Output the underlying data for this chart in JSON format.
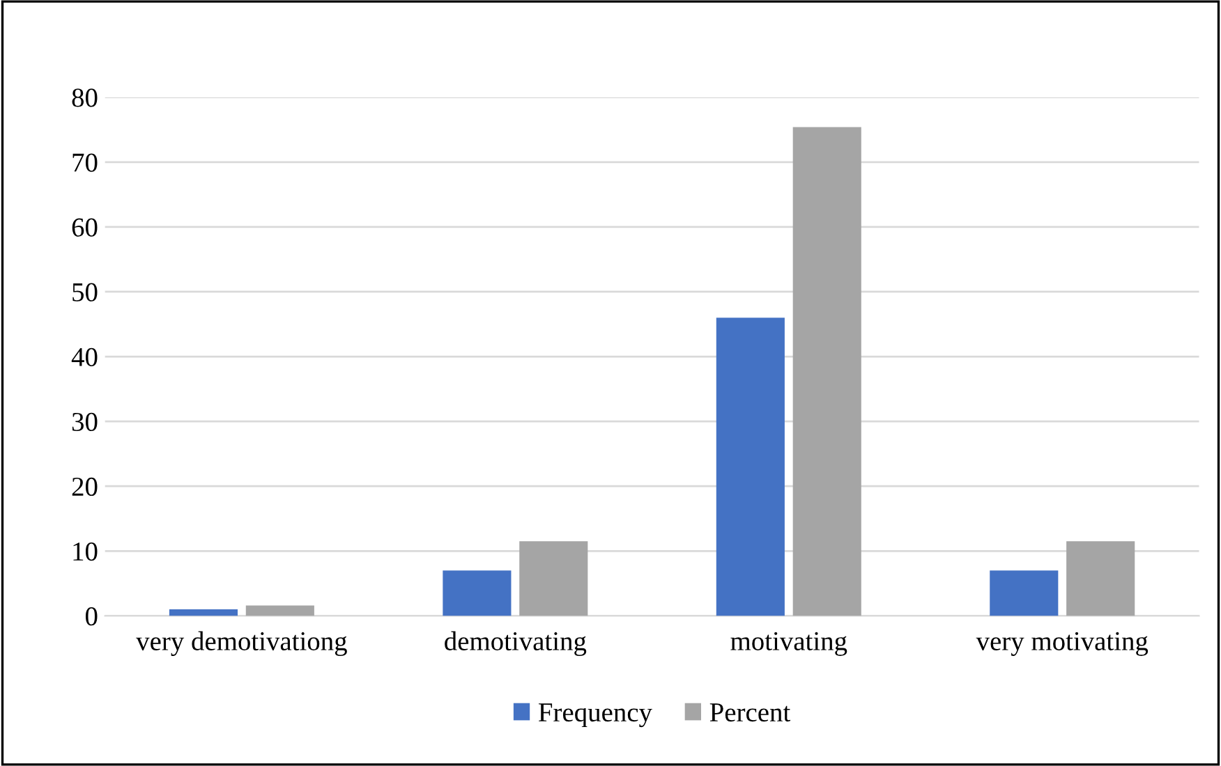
{
  "chart_data": {
    "type": "bar",
    "categories": [
      "very demotivationg",
      "demotivating",
      "motivating",
      "very motivating"
    ],
    "series": [
      {
        "name": "Frequency",
        "color": "#4472c4",
        "values": [
          1,
          7,
          46,
          7
        ]
      },
      {
        "name": "Percent",
        "color": "#a5a5a5",
        "values": [
          1.6,
          11.5,
          75.4,
          11.5
        ]
      }
    ],
    "ylim": [
      0,
      80
    ],
    "yticks": [
      0,
      10,
      20,
      30,
      40,
      50,
      60,
      70,
      80
    ],
    "grid": "y",
    "legend": "bottom"
  }
}
